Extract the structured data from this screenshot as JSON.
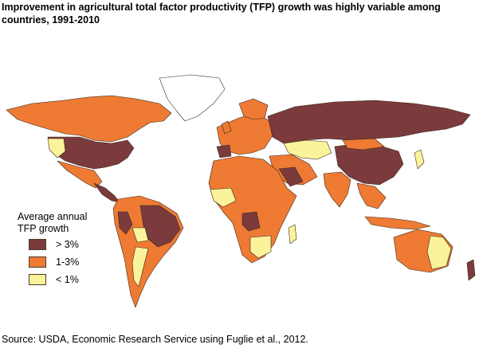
{
  "title": "Improvement in agricultural total factor productivity (TFP) growth was highly variable among countries, 1991-2010",
  "legend": {
    "title_line1": "Average annual",
    "title_line2": "TFP growth",
    "items": [
      {
        "label": "> 3%",
        "color": "#7b3a3c"
      },
      {
        "label": "1-3%",
        "color": "#ee7a34"
      },
      {
        "label": "< 1%",
        "color": "#fbf39b"
      }
    ]
  },
  "source": "Source: USDA, Economic Research Service using Fuglie et al., 2012.",
  "colors": {
    "high": "#7b3a3c",
    "mid": "#ee7a34",
    "low": "#fbf39b",
    "border": "#3a2a1a"
  }
}
